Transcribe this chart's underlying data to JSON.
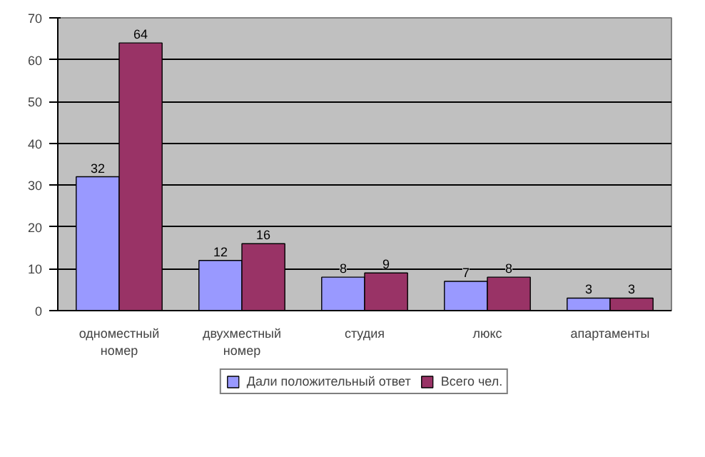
{
  "chart_data": {
    "type": "bar",
    "categories": [
      "одноместный номер",
      "двухместный номер",
      "студия",
      "люкс",
      "апартаменты"
    ],
    "series": [
      {
        "name": "Дали положительный ответ",
        "color": "#9999ff",
        "values": [
          32,
          12,
          8,
          7,
          3
        ]
      },
      {
        "name": "Всего чел.",
        "color": "#993366",
        "values": [
          64,
          16,
          9,
          8,
          3
        ]
      }
    ],
    "ylim": [
      0,
      70
    ],
    "yticks": [
      0,
      10,
      20,
      30,
      40,
      50,
      60,
      70
    ],
    "grid": "y",
    "legend": "bottom",
    "data_labels": true
  }
}
